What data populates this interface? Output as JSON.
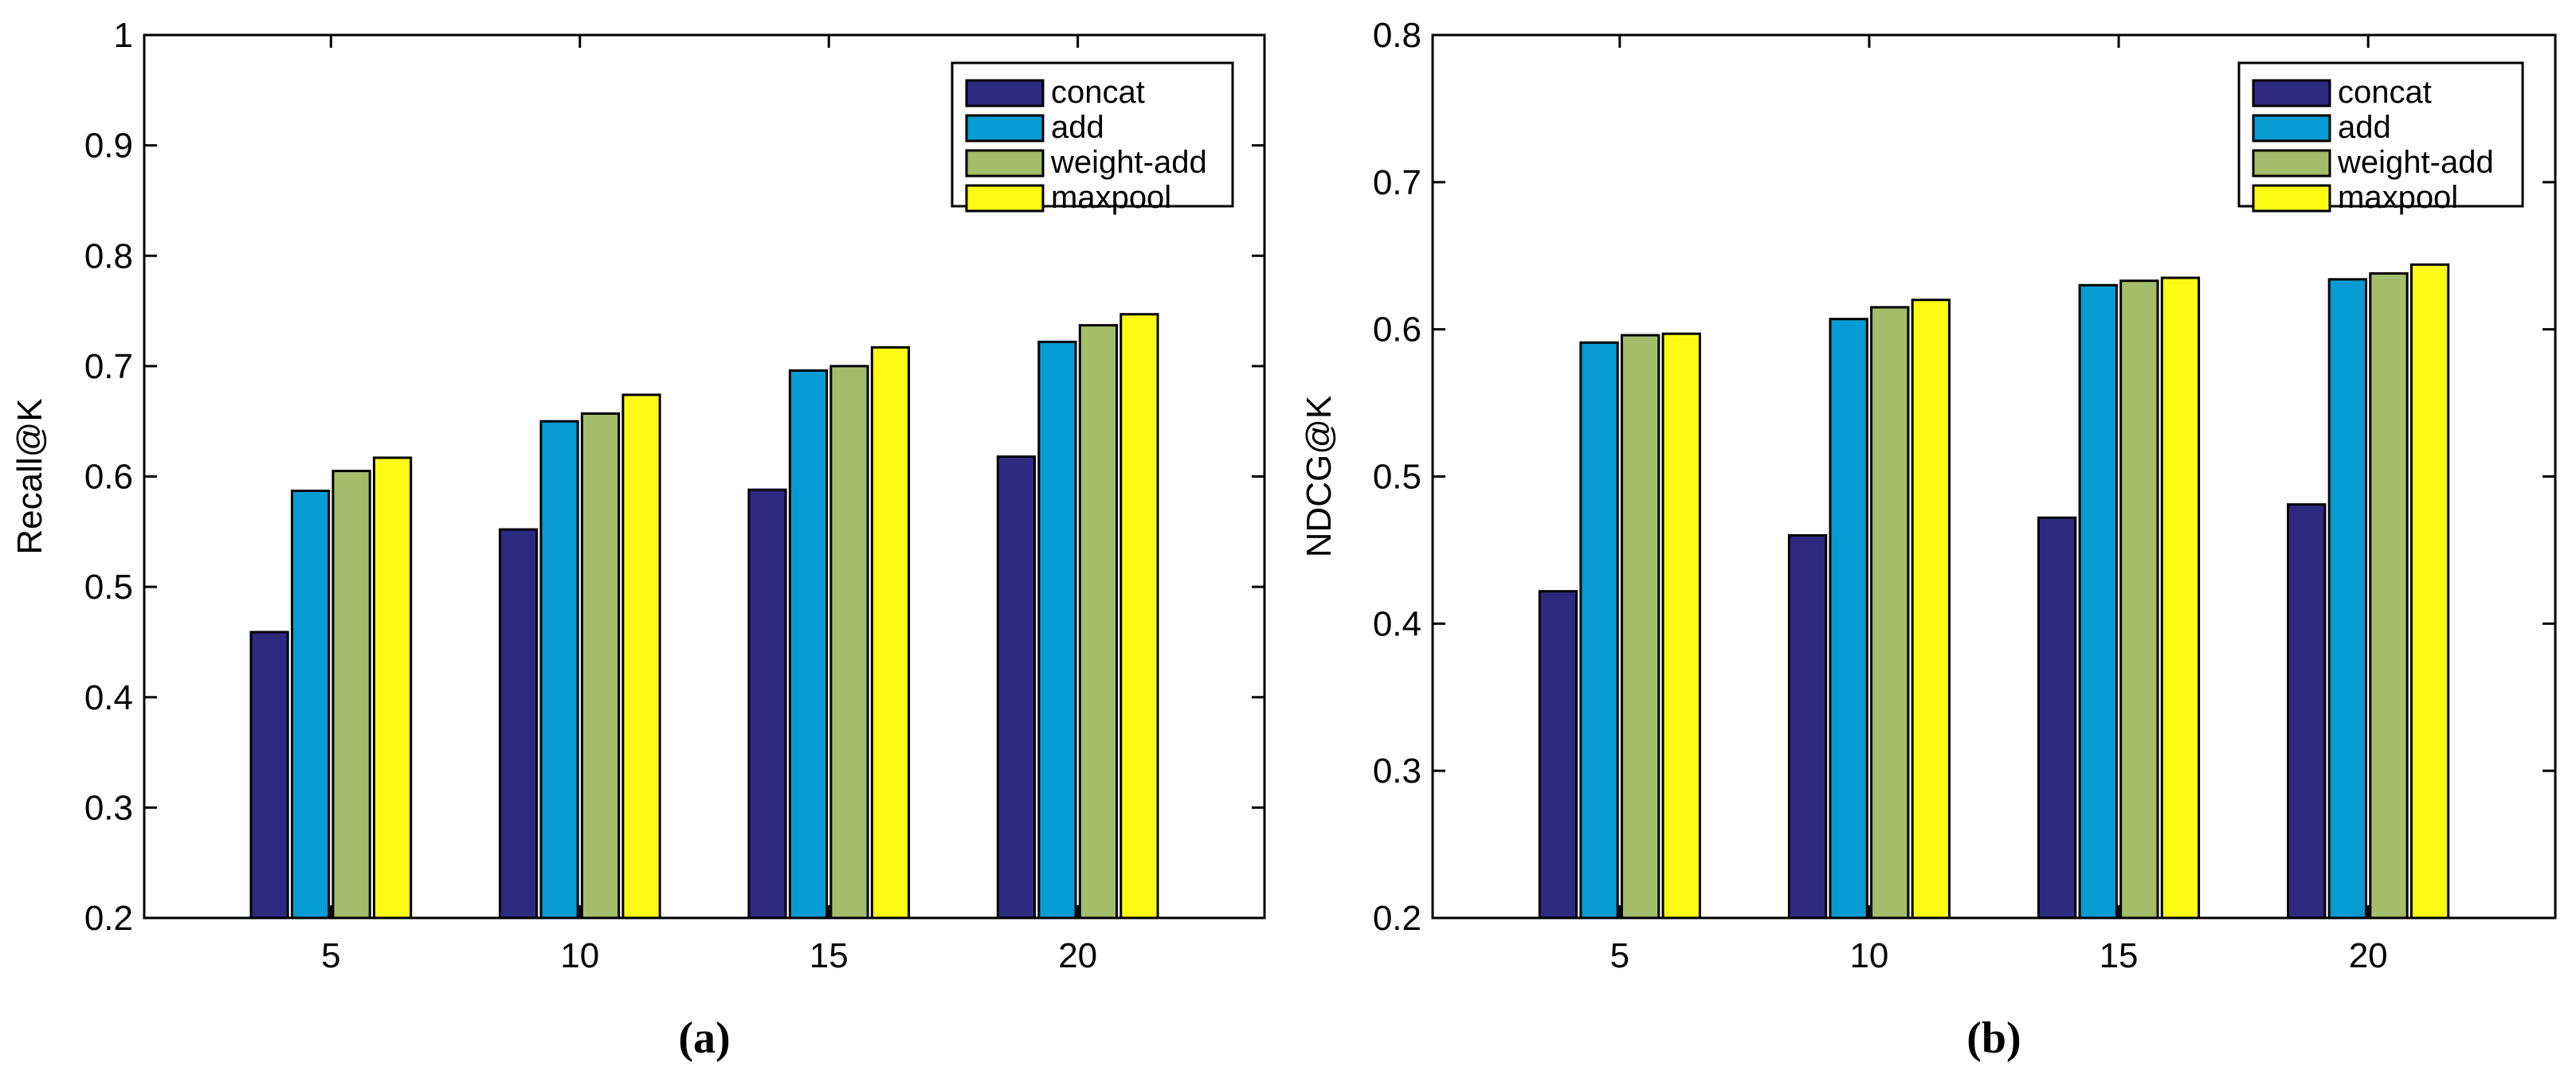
{
  "chart_data": [
    {
      "type": "bar",
      "caption": "(a)",
      "ylabel": "Recall@K",
      "xlabel": "",
      "categories": [
        "5",
        "10",
        "15",
        "20"
      ],
      "ylim": [
        0.2,
        1.0
      ],
      "yticks": [
        0.2,
        0.3,
        0.4,
        0.5,
        0.6,
        0.7,
        0.8,
        0.9,
        1.0
      ],
      "ytick_labels": [
        "0.2",
        "0.3",
        "0.4",
        "0.5",
        "0.6",
        "0.7",
        "0.8",
        "0.9",
        "1"
      ],
      "grid": false,
      "legend_position": "top-right",
      "series": [
        {
          "name": "concat",
          "color": "#2e2a80",
          "values": [
            0.459,
            0.552,
            0.588,
            0.618
          ]
        },
        {
          "name": "add",
          "color": "#069bd2",
          "values": [
            0.587,
            0.65,
            0.696,
            0.722
          ]
        },
        {
          "name": "weight-add",
          "color": "#a4bd6a",
          "values": [
            0.605,
            0.657,
            0.7,
            0.737
          ]
        },
        {
          "name": "maxpool",
          "color": "#fdfa14",
          "values": [
            0.617,
            0.674,
            0.717,
            0.747
          ]
        }
      ]
    },
    {
      "type": "bar",
      "caption": "(b)",
      "ylabel": "NDCG@K",
      "xlabel": "",
      "categories": [
        "5",
        "10",
        "15",
        "20"
      ],
      "ylim": [
        0.2,
        0.8
      ],
      "yticks": [
        0.2,
        0.3,
        0.4,
        0.5,
        0.6,
        0.7,
        0.8
      ],
      "ytick_labels": [
        "0.2",
        "0.3",
        "0.4",
        "0.5",
        "0.6",
        "0.7",
        "0.8"
      ],
      "grid": false,
      "legend_position": "top-right",
      "series": [
        {
          "name": "concat",
          "color": "#2e2a80",
          "values": [
            0.422,
            0.46,
            0.472,
            0.481
          ]
        },
        {
          "name": "add",
          "color": "#069bd2",
          "values": [
            0.591,
            0.607,
            0.63,
            0.634
          ]
        },
        {
          "name": "weight-add",
          "color": "#a4bd6a",
          "values": [
            0.596,
            0.615,
            0.633,
            0.638
          ]
        },
        {
          "name": "maxpool",
          "color": "#fdfa14",
          "values": [
            0.597,
            0.62,
            0.635,
            0.644
          ]
        }
      ]
    }
  ]
}
